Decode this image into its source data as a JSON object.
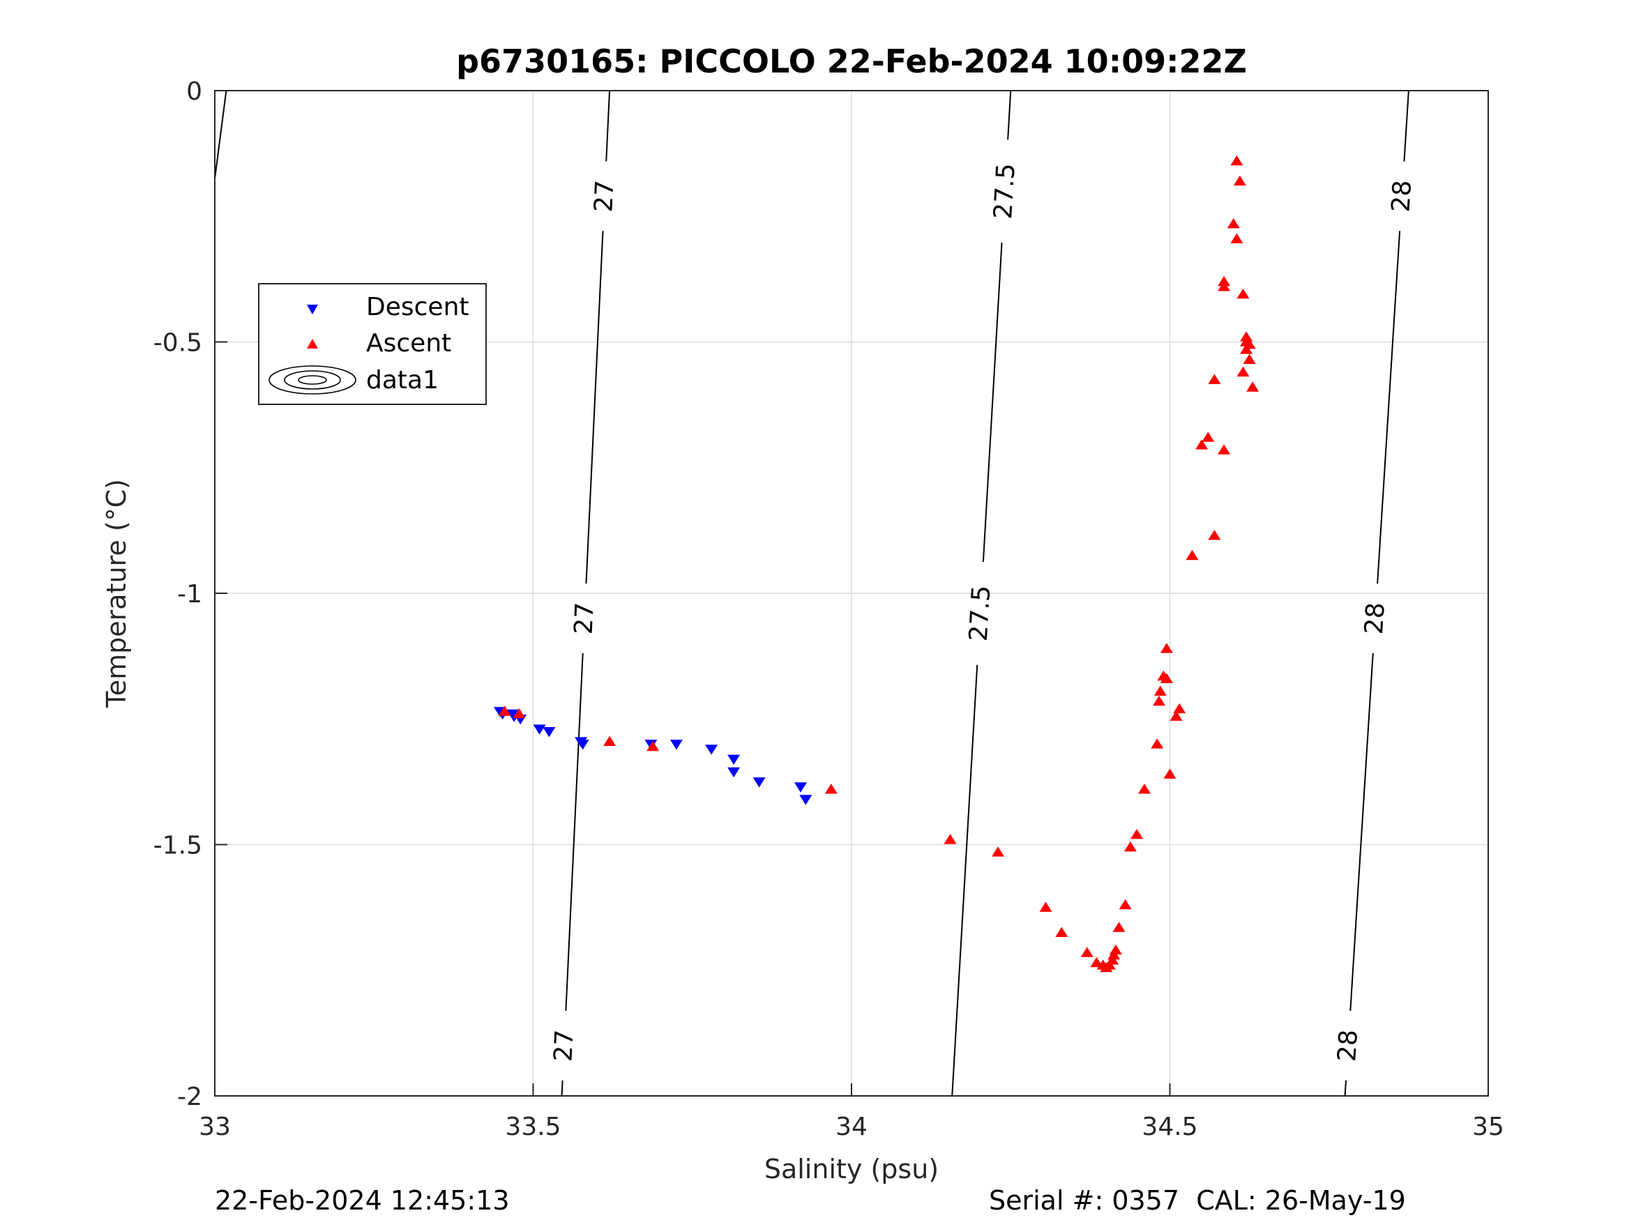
{
  "chart_data": {
    "type": "scatter",
    "title": "p6730165: PICCOLO 22-Feb-2024 10:09:22Z",
    "xlabel": "Salinity (psu)",
    "ylabel": "Temperature (°C)",
    "xlim": [
      33,
      35
    ],
    "ylim": [
      -2,
      0
    ],
    "xticks": [
      33,
      33.5,
      34,
      34.5,
      35
    ],
    "xtick_labels": [
      "33",
      "33.5",
      "34",
      "34.5",
      "35"
    ],
    "yticks": [
      0,
      -0.5,
      -1,
      -1.5,
      -2
    ],
    "ytick_labels": [
      "0",
      "-0.5",
      "-1",
      "-1.5",
      "-2"
    ],
    "grid": true,
    "legend": {
      "placement": "upper-left",
      "entries": [
        "Descent",
        "Ascent",
        "data1"
      ]
    },
    "series": [
      {
        "name": "Descent",
        "marker": "triangle-down",
        "color": "#0000ff",
        "points": [
          [
            33.448,
            -1.235
          ],
          [
            33.452,
            -1.24
          ],
          [
            33.468,
            -1.24
          ],
          [
            33.47,
            -1.245
          ],
          [
            33.48,
            -1.25
          ],
          [
            33.51,
            -1.27
          ],
          [
            33.525,
            -1.275
          ],
          [
            33.575,
            -1.295
          ],
          [
            33.578,
            -1.3
          ],
          [
            33.685,
            -1.3
          ],
          [
            33.725,
            -1.3
          ],
          [
            33.78,
            -1.31
          ],
          [
            33.815,
            -1.33
          ],
          [
            33.815,
            -1.355
          ],
          [
            33.855,
            -1.375
          ],
          [
            33.92,
            -1.385
          ],
          [
            33.928,
            -1.41
          ]
        ]
      },
      {
        "name": "Ascent",
        "marker": "triangle-up",
        "color": "#ff0000",
        "points": [
          [
            34.605,
            -0.14
          ],
          [
            34.61,
            -0.18
          ],
          [
            34.6,
            -0.265
          ],
          [
            34.605,
            -0.295
          ],
          [
            34.585,
            -0.38
          ],
          [
            34.585,
            -0.39
          ],
          [
            34.615,
            -0.405
          ],
          [
            34.62,
            -0.49
          ],
          [
            34.62,
            -0.5
          ],
          [
            34.625,
            -0.505
          ],
          [
            34.62,
            -0.515
          ],
          [
            34.625,
            -0.535
          ],
          [
            34.615,
            -0.56
          ],
          [
            34.57,
            -0.575
          ],
          [
            34.63,
            -0.59
          ],
          [
            34.56,
            -0.69
          ],
          [
            34.55,
            -0.705
          ],
          [
            34.585,
            -0.715
          ],
          [
            34.57,
            -0.885
          ],
          [
            34.535,
            -0.925
          ],
          [
            34.495,
            -1.11
          ],
          [
            34.49,
            -1.165
          ],
          [
            34.495,
            -1.17
          ],
          [
            34.485,
            -1.195
          ],
          [
            34.483,
            -1.215
          ],
          [
            34.515,
            -1.23
          ],
          [
            34.51,
            -1.245
          ],
          [
            34.48,
            -1.3
          ],
          [
            34.5,
            -1.36
          ],
          [
            34.46,
            -1.39
          ],
          [
            34.448,
            -1.48
          ],
          [
            34.438,
            -1.505
          ],
          [
            34.155,
            -1.49
          ],
          [
            34.23,
            -1.515
          ],
          [
            34.305,
            -1.625
          ],
          [
            34.33,
            -1.675
          ],
          [
            34.43,
            -1.62
          ],
          [
            34.42,
            -1.665
          ],
          [
            34.415,
            -1.71
          ],
          [
            34.412,
            -1.72
          ],
          [
            34.41,
            -1.73
          ],
          [
            34.405,
            -1.74
          ],
          [
            34.4,
            -1.745
          ],
          [
            34.395,
            -1.74
          ],
          [
            34.385,
            -1.735
          ],
          [
            34.37,
            -1.715
          ],
          [
            33.455,
            -1.235
          ],
          [
            33.478,
            -1.24
          ],
          [
            33.62,
            -1.295
          ],
          [
            33.688,
            -1.305
          ],
          [
            33.968,
            -1.39
          ]
        ]
      }
    ],
    "contours": [
      {
        "label": "27",
        "line": [
          [
            33.62,
            0
          ],
          [
            33.545,
            -2
          ]
        ],
        "label_at": [
          -0.21,
          -1.05,
          -1.9
        ]
      },
      {
        "label": "27.5",
        "line": [
          [
            34.25,
            0
          ],
          [
            34.158,
            -2
          ]
        ],
        "label_at": [
          -0.2,
          -1.04
        ]
      },
      {
        "label": "28",
        "line": [
          [
            34.875,
            0
          ],
          [
            34.775,
            -2
          ]
        ],
        "label_at": [
          -0.21,
          -1.05,
          -1.9
        ]
      },
      {
        "label": "",
        "line": [
          [
            33.018,
            0
          ],
          [
            33.0,
            -0.175
          ]
        ],
        "label_at": []
      }
    ]
  },
  "footer": {
    "left": "22-Feb-2024 12:45:13",
    "right": "Serial #: 0357  CAL: 26-May-19"
  }
}
